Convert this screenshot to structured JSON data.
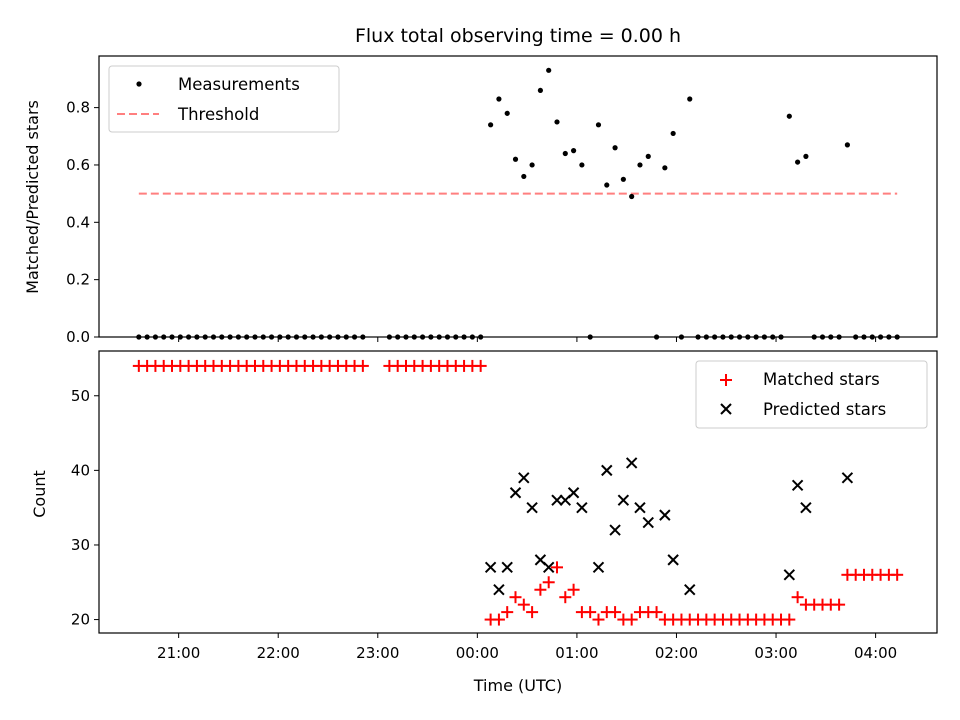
{
  "chart_data": [
    {
      "type": "scatter",
      "title": "Flux total observing time = 0.00 h",
      "xlabel": "",
      "ylabel": "Matched/Predicted stars",
      "ylim": [
        0,
        0.98
      ],
      "yticks": [
        "0.0",
        "0.2",
        "0.4",
        "0.6",
        "0.8"
      ],
      "legend_position": "top-left",
      "series": [
        {
          "name": "Measurements",
          "marker": "dot",
          "color": "#000000",
          "points": [
            [
              "20:36",
              0
            ],
            [
              "20:41",
              0
            ],
            [
              "20:46",
              0
            ],
            [
              "20:51",
              0
            ],
            [
              "20:56",
              0
            ],
            [
              "21:01",
              0
            ],
            [
              "21:06",
              0
            ],
            [
              "21:11",
              0
            ],
            [
              "21:16",
              0
            ],
            [
              "21:21",
              0
            ],
            [
              "21:26",
              0
            ],
            [
              "21:31",
              0
            ],
            [
              "21:36",
              0
            ],
            [
              "21:41",
              0
            ],
            [
              "21:46",
              0
            ],
            [
              "21:51",
              0
            ],
            [
              "21:56",
              0
            ],
            [
              "22:01",
              0
            ],
            [
              "22:06",
              0
            ],
            [
              "22:11",
              0
            ],
            [
              "22:16",
              0
            ],
            [
              "22:21",
              0
            ],
            [
              "22:26",
              0
            ],
            [
              "22:31",
              0
            ],
            [
              "22:36",
              0
            ],
            [
              "22:41",
              0
            ],
            [
              "22:46",
              0
            ],
            [
              "22:51",
              0
            ],
            [
              "23:07",
              0
            ],
            [
              "23:12",
              0
            ],
            [
              "23:17",
              0
            ],
            [
              "23:22",
              0
            ],
            [
              "23:27",
              0
            ],
            [
              "23:32",
              0
            ],
            [
              "23:37",
              0
            ],
            [
              "23:42",
              0
            ],
            [
              "23:47",
              0
            ],
            [
              "23:52",
              0
            ],
            [
              "23:57",
              0
            ],
            [
              "00:02",
              0
            ],
            [
              "00:08",
              0.74
            ],
            [
              "00:13",
              0.83
            ],
            [
              "00:18",
              0.78
            ],
            [
              "00:23",
              0.62
            ],
            [
              "00:28",
              0.56
            ],
            [
              "00:33",
              0.6
            ],
            [
              "00:38",
              0.86
            ],
            [
              "00:43",
              0.93
            ],
            [
              "00:48",
              0.75
            ],
            [
              "00:53",
              0.64
            ],
            [
              "00:58",
              0.65
            ],
            [
              "01:03",
              0.6
            ],
            [
              "01:08",
              0
            ],
            [
              "01:13",
              0.74
            ],
            [
              "01:18",
              0.53
            ],
            [
              "01:23",
              0.66
            ],
            [
              "01:28",
              0.55
            ],
            [
              "01:33",
              0.49
            ],
            [
              "01:38",
              0.6
            ],
            [
              "01:43",
              0.63
            ],
            [
              "01:48",
              0
            ],
            [
              "01:53",
              0.59
            ],
            [
              "01:58",
              0.71
            ],
            [
              "02:03",
              0
            ],
            [
              "02:08",
              0.83
            ],
            [
              "02:13",
              0
            ],
            [
              "02:18",
              0
            ],
            [
              "02:23",
              0
            ],
            [
              "02:28",
              0
            ],
            [
              "02:33",
              0
            ],
            [
              "02:38",
              0
            ],
            [
              "02:43",
              0
            ],
            [
              "02:48",
              0
            ],
            [
              "02:53",
              0
            ],
            [
              "02:58",
              0
            ],
            [
              "03:03",
              0
            ],
            [
              "03:08",
              0.77
            ],
            [
              "03:13",
              0.61
            ],
            [
              "03:18",
              0.63
            ],
            [
              "03:23",
              0
            ],
            [
              "03:28",
              0
            ],
            [
              "03:33",
              0
            ],
            [
              "03:38",
              0
            ],
            [
              "03:43",
              0.67
            ],
            [
              "03:48",
              0
            ],
            [
              "03:53",
              0
            ],
            [
              "03:58",
              0
            ],
            [
              "04:03",
              0
            ],
            [
              "04:08",
              0
            ],
            [
              "04:13",
              0
            ]
          ]
        },
        {
          "name": "Threshold",
          "type": "line",
          "style": "dashed",
          "color": "#ff7f7f",
          "points": [
            [
              "20:36",
              0.5
            ],
            [
              "04:13",
              0.5
            ]
          ]
        }
      ]
    },
    {
      "type": "scatter",
      "xlabel": "Time (UTC)",
      "ylabel": "Count",
      "ylim": [
        18.2,
        56
      ],
      "yticks": [
        "20",
        "30",
        "40",
        "50"
      ],
      "xticks": [
        "21:00",
        "22:00",
        "23:00",
        "00:00",
        "01:00",
        "02:00",
        "03:00",
        "04:00"
      ],
      "xlim": [
        "20:12",
        "04:37"
      ],
      "legend_position": "top-right",
      "series": [
        {
          "name": "Matched stars",
          "marker": "plus",
          "color": "#ff0000",
          "points": [
            [
              "20:36",
              54
            ],
            [
              "20:41",
              54
            ],
            [
              "20:46",
              54
            ],
            [
              "20:51",
              54
            ],
            [
              "20:56",
              54
            ],
            [
              "21:01",
              54
            ],
            [
              "21:06",
              54
            ],
            [
              "21:11",
              54
            ],
            [
              "21:16",
              54
            ],
            [
              "21:21",
              54
            ],
            [
              "21:26",
              54
            ],
            [
              "21:31",
              54
            ],
            [
              "21:36",
              54
            ],
            [
              "21:41",
              54
            ],
            [
              "21:46",
              54
            ],
            [
              "21:51",
              54
            ],
            [
              "21:56",
              54
            ],
            [
              "22:01",
              54
            ],
            [
              "22:06",
              54
            ],
            [
              "22:11",
              54
            ],
            [
              "22:16",
              54
            ],
            [
              "22:21",
              54
            ],
            [
              "22:26",
              54
            ],
            [
              "22:31",
              54
            ],
            [
              "22:36",
              54
            ],
            [
              "22:41",
              54
            ],
            [
              "22:46",
              54
            ],
            [
              "22:51",
              54
            ],
            [
              "23:07",
              54
            ],
            [
              "23:12",
              54
            ],
            [
              "23:17",
              54
            ],
            [
              "23:22",
              54
            ],
            [
              "23:27",
              54
            ],
            [
              "23:32",
              54
            ],
            [
              "23:37",
              54
            ],
            [
              "23:42",
              54
            ],
            [
              "23:47",
              54
            ],
            [
              "23:52",
              54
            ],
            [
              "23:57",
              54
            ],
            [
              "00:02",
              54
            ],
            [
              "00:08",
              20
            ],
            [
              "00:13",
              20
            ],
            [
              "00:18",
              21
            ],
            [
              "00:23",
              23
            ],
            [
              "00:28",
              22
            ],
            [
              "00:33",
              21
            ],
            [
              "00:38",
              24
            ],
            [
              "00:43",
              25
            ],
            [
              "00:48",
              27
            ],
            [
              "00:53",
              23
            ],
            [
              "00:58",
              24
            ],
            [
              "01:03",
              21
            ],
            [
              "01:08",
              21
            ],
            [
              "01:13",
              20
            ],
            [
              "01:18",
              21
            ],
            [
              "01:23",
              21
            ],
            [
              "01:28",
              20
            ],
            [
              "01:33",
              20
            ],
            [
              "01:38",
              21
            ],
            [
              "01:43",
              21
            ],
            [
              "01:48",
              21
            ],
            [
              "01:53",
              20
            ],
            [
              "01:58",
              20
            ],
            [
              "02:03",
              20
            ],
            [
              "02:08",
              20
            ],
            [
              "02:13",
              20
            ],
            [
              "02:18",
              20
            ],
            [
              "02:23",
              20
            ],
            [
              "02:28",
              20
            ],
            [
              "02:33",
              20
            ],
            [
              "02:38",
              20
            ],
            [
              "02:43",
              20
            ],
            [
              "02:48",
              20
            ],
            [
              "02:53",
              20
            ],
            [
              "02:58",
              20
            ],
            [
              "03:03",
              20
            ],
            [
              "03:08",
              20
            ],
            [
              "03:13",
              23
            ],
            [
              "03:18",
              22
            ],
            [
              "03:23",
              22
            ],
            [
              "03:28",
              22
            ],
            [
              "03:33",
              22
            ],
            [
              "03:38",
              22
            ],
            [
              "03:43",
              26
            ],
            [
              "03:48",
              26
            ],
            [
              "03:53",
              26
            ],
            [
              "03:58",
              26
            ],
            [
              "04:03",
              26
            ],
            [
              "04:08",
              26
            ],
            [
              "04:13",
              26
            ]
          ]
        },
        {
          "name": "Predicted stars",
          "marker": "x",
          "color": "#000000",
          "points": [
            [
              "00:08",
              27
            ],
            [
              "00:13",
              24
            ],
            [
              "00:18",
              27
            ],
            [
              "00:23",
              37
            ],
            [
              "00:28",
              39
            ],
            [
              "00:33",
              35
            ],
            [
              "00:38",
              28
            ],
            [
              "00:43",
              27
            ],
            [
              "00:48",
              36
            ],
            [
              "00:53",
              36
            ],
            [
              "00:58",
              37
            ],
            [
              "01:03",
              35
            ],
            [
              "01:13",
              27
            ],
            [
              "01:18",
              40
            ],
            [
              "01:23",
              32
            ],
            [
              "01:28",
              36
            ],
            [
              "01:33",
              41
            ],
            [
              "01:38",
              35
            ],
            [
              "01:43",
              33
            ],
            [
              "01:53",
              34
            ],
            [
              "01:58",
              28
            ],
            [
              "02:08",
              24
            ],
            [
              "03:08",
              26
            ],
            [
              "03:13",
              38
            ],
            [
              "03:18",
              35
            ],
            [
              "03:43",
              39
            ]
          ]
        }
      ]
    }
  ]
}
